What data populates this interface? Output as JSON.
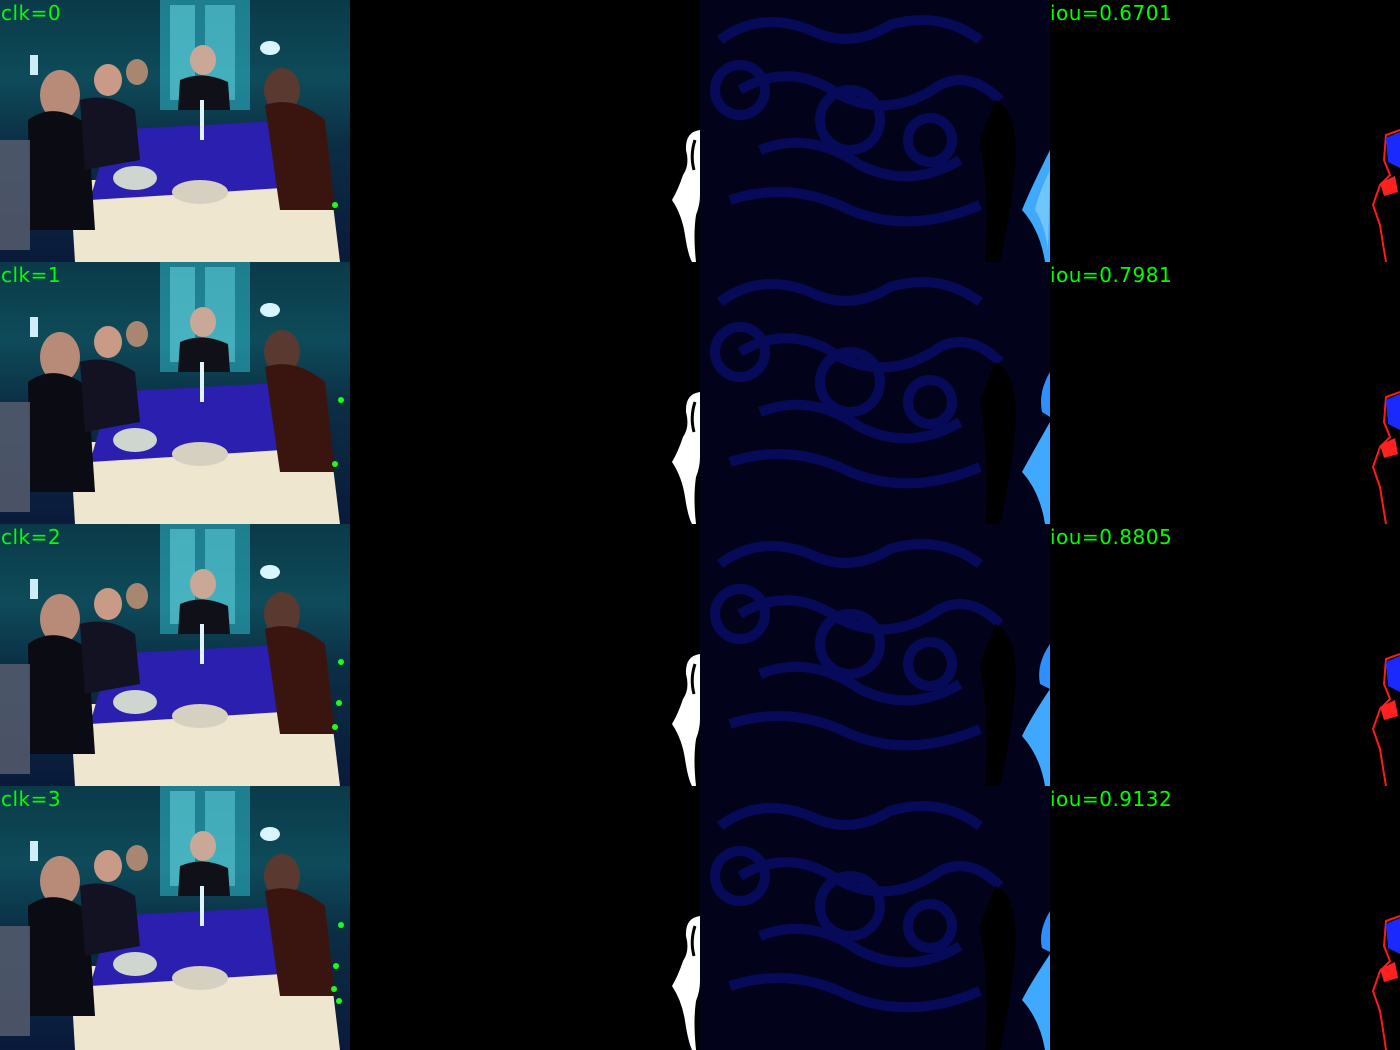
{
  "rows": [
    {
      "click_label": "clk=0",
      "iou_label": "iou=0.6701",
      "clicks": 1
    },
    {
      "click_label": "clk=1",
      "iou_label": "iou=0.7981",
      "clicks": 2
    },
    {
      "click_label": "clk=2",
      "iou_label": "iou=0.8805",
      "clicks": 3
    },
    {
      "click_label": "clk=3",
      "iou_label": "iou=0.9132",
      "clicks": 4
    }
  ],
  "colors": {
    "label": "#00ff00",
    "click_point": "#1aff1a",
    "prediction_fill": "#0000ff",
    "ground_truth_outline": "#ff0000",
    "mask": "#ffffff"
  }
}
